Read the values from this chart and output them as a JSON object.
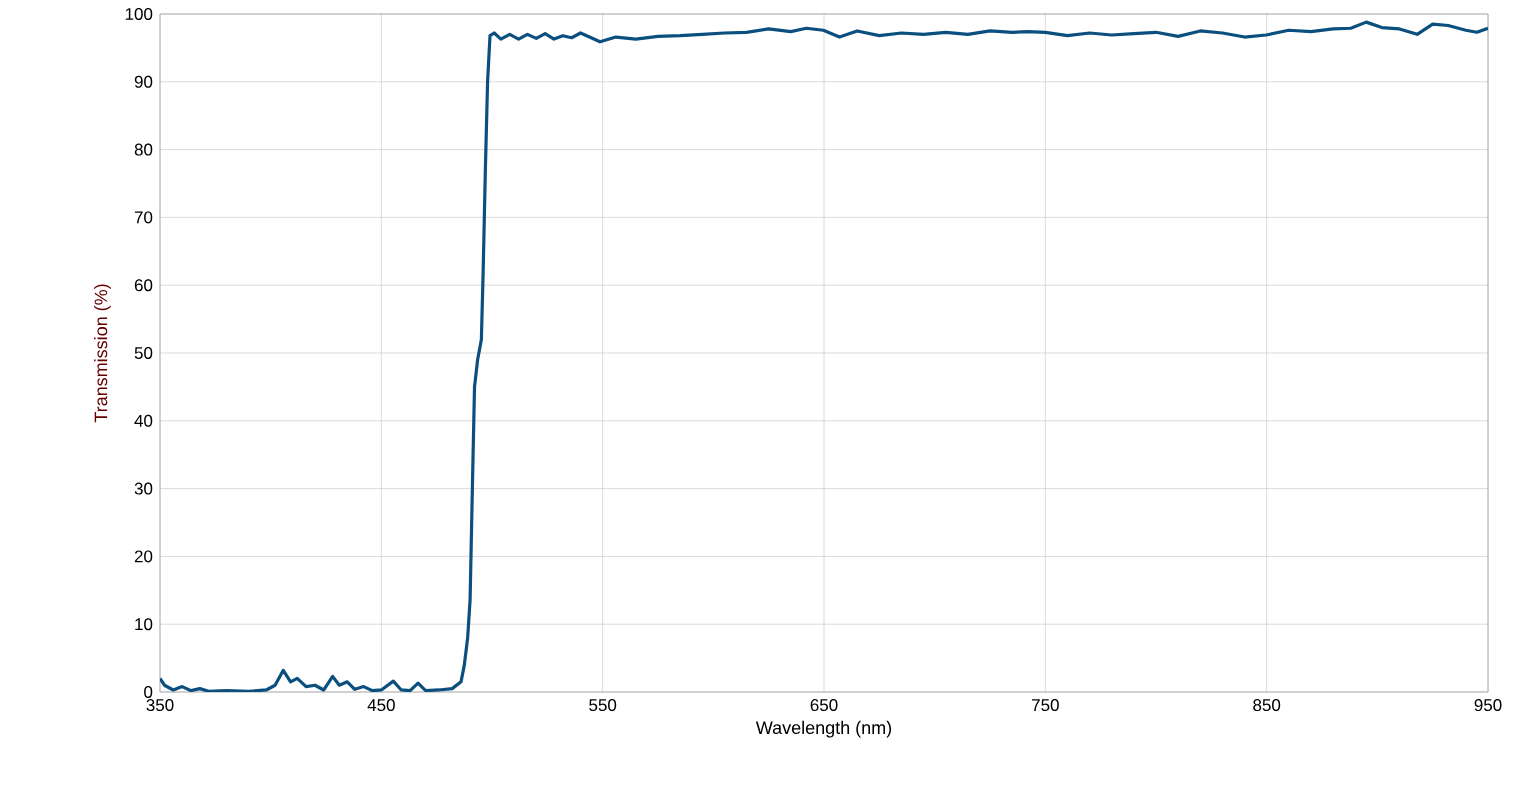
{
  "chart_data": {
    "type": "line",
    "xlabel": "Wavelength (nm)",
    "ylabel": "Transmission (%)",
    "xlim": [
      350,
      950
    ],
    "ylim": [
      0,
      100
    ],
    "xticks": [
      350,
      450,
      550,
      650,
      750,
      850,
      950
    ],
    "yticks": [
      0,
      10,
      20,
      30,
      40,
      50,
      60,
      70,
      80,
      90,
      100
    ],
    "grid": true,
    "series": [
      {
        "color": "#0b4f7f",
        "x": [
          350,
          352,
          356,
          360,
          364,
          368,
          372,
          380,
          390,
          398,
          402,
          405.7,
          409,
          412,
          416,
          420,
          424,
          428,
          431,
          434.6,
          438,
          442,
          446,
          450,
          455.4,
          459,
          463,
          466.6,
          470,
          476,
          482,
          486,
          487.5,
          489,
          490.1,
          491,
          492.1,
          493.5,
          495.2,
          496,
          497,
          498,
          499.1,
          501,
          504,
          508,
          512,
          516,
          520,
          524,
          528,
          532,
          536,
          540,
          548.8,
          556,
          565,
          575,
          585,
          595,
          605,
          615,
          625,
          635,
          642,
          649.7,
          657,
          665,
          675,
          685,
          695,
          705,
          715,
          725,
          735,
          742,
          750,
          760,
          770,
          780,
          790,
          800,
          810,
          820,
          830,
          840,
          849.7,
          860,
          870,
          880,
          888,
          895,
          902,
          910,
          918,
          925,
          932,
          940,
          945,
          950
        ],
        "values": [
          2.0,
          1.0,
          0.3,
          0.8,
          0.2,
          0.5,
          0.1,
          0.2,
          0.1,
          0.3,
          1.0,
          3.2,
          1.5,
          2.0,
          0.8,
          1.0,
          0.3,
          2.3,
          1.0,
          1.5,
          0.4,
          0.8,
          0.2,
          0.3,
          1.6,
          0.3,
          0.2,
          1.3,
          0.2,
          0.3,
          0.5,
          1.5,
          4.0,
          8.0,
          13.6,
          28.0,
          45.0,
          49.0,
          52.0,
          62.0,
          77.0,
          90.0,
          96.8,
          97.2,
          96.3,
          97.0,
          96.3,
          97.0,
          96.4,
          97.1,
          96.3,
          96.8,
          96.5,
          97.2,
          95.9,
          96.6,
          96.3,
          96.7,
          96.8,
          97.0,
          97.2,
          97.3,
          97.8,
          97.4,
          97.9,
          97.6,
          96.6,
          97.5,
          96.8,
          97.2,
          97.0,
          97.3,
          97.0,
          97.5,
          97.3,
          97.4,
          97.3,
          96.8,
          97.2,
          96.9,
          97.1,
          97.3,
          96.7,
          97.5,
          97.2,
          96.6,
          96.9,
          97.6,
          97.4,
          97.8,
          97.9,
          98.8,
          98.0,
          97.8,
          97.0,
          98.5,
          98.3,
          97.6,
          97.3,
          97.9
        ]
      }
    ]
  }
}
